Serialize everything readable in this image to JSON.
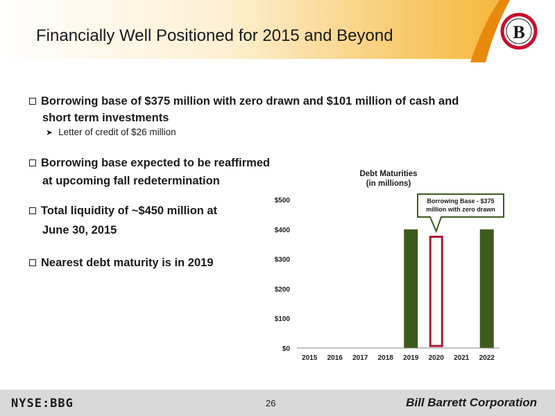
{
  "header": {
    "title": "Financially Well Positioned for 2015 and Beyond",
    "logo_letter": "B",
    "accent_color": "#f3a50a",
    "logo_color": "#c8102e"
  },
  "bullets": [
    {
      "line1": "Borrowing base of $375 million with zero drawn and $101 million of cash and",
      "line2": "short term investments"
    },
    {
      "line1": "Borrowing base expected to be reaffirmed",
      "line2": "at upcoming fall redetermination"
    },
    {
      "line1": "Total liquidity of ~$450 million at",
      "line2": "June 30, 2015"
    },
    {
      "line1": "Nearest debt maturity is in 2019",
      "line2": ""
    }
  ],
  "sub_bullet": "Letter of credit of $26 million",
  "chart_data": {
    "type": "bar",
    "title": "Debt Maturities",
    "subtitle": "(in millions)",
    "categories": [
      "2015",
      "2016",
      "2017",
      "2018",
      "2019",
      "2020",
      "2021",
      "2022"
    ],
    "values": [
      0,
      0,
      0,
      0,
      400,
      0,
      0,
      400
    ],
    "borrowing_base": {
      "category": "2020",
      "value": 375
    },
    "yticks": [
      "$0",
      "$100",
      "$200",
      "$300",
      "$400",
      "$500"
    ],
    "ylim": [
      0,
      500
    ],
    "bar_color": "#3d5a1e",
    "outline_color": "#a6192e",
    "callout": {
      "line1": "Borrowing Base - $375",
      "line2": "million with zero drawn"
    }
  },
  "footer": {
    "ticker": "NYSE:BBG",
    "page_number": "26",
    "company": "Bill Barrett Corporation"
  }
}
